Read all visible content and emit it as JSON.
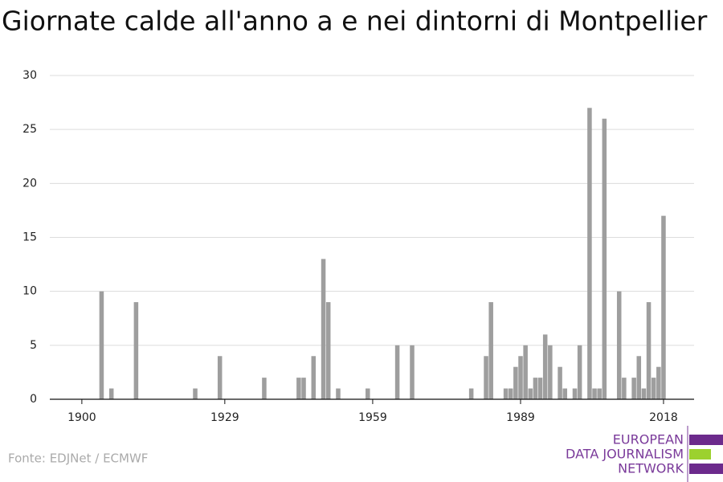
{
  "chart_data": {
    "type": "bar",
    "title": "Giornate calde all'anno a e nei dintorni di Montpellier",
    "source": "Fonte: EDJNet / ECMWF",
    "logo": [
      "EUROPEAN",
      "DATA JOURNALISM",
      "NETWORK"
    ],
    "color": "#9e9e9e",
    "grid": true,
    "x": [
      1904,
      1906,
      1911,
      1923,
      1928,
      1937,
      1944,
      1945,
      1947,
      1949,
      1950,
      1952,
      1958,
      1964,
      1967,
      1979,
      1982,
      1983,
      1986,
      1987,
      1988,
      1989,
      1990,
      1991,
      1992,
      1993,
      1994,
      1995,
      1997,
      1998,
      2000,
      2001,
      2003,
      2004,
      2005,
      2006,
      2009,
      2010,
      2012,
      2013,
      2014,
      2015,
      2016,
      2017,
      2018
    ],
    "values": [
      10,
      1,
      9,
      1,
      4,
      2,
      2,
      2,
      4,
      13,
      9,
      1,
      1,
      5,
      5,
      1,
      4,
      9,
      1,
      1,
      3,
      4,
      5,
      1,
      2,
      2,
      6,
      5,
      3,
      1,
      1,
      5,
      27,
      1,
      1,
      26,
      10,
      2,
      2,
      4,
      1,
      9,
      2,
      3,
      17
    ],
    "xlim": [
      1893.5,
      2024.2
    ],
    "xticks": [
      1900,
      1929,
      1959,
      1989,
      2018
    ],
    "ylim": [
      0,
      30
    ],
    "yticks": [
      0,
      5,
      10,
      15,
      20,
      25,
      30
    ]
  }
}
